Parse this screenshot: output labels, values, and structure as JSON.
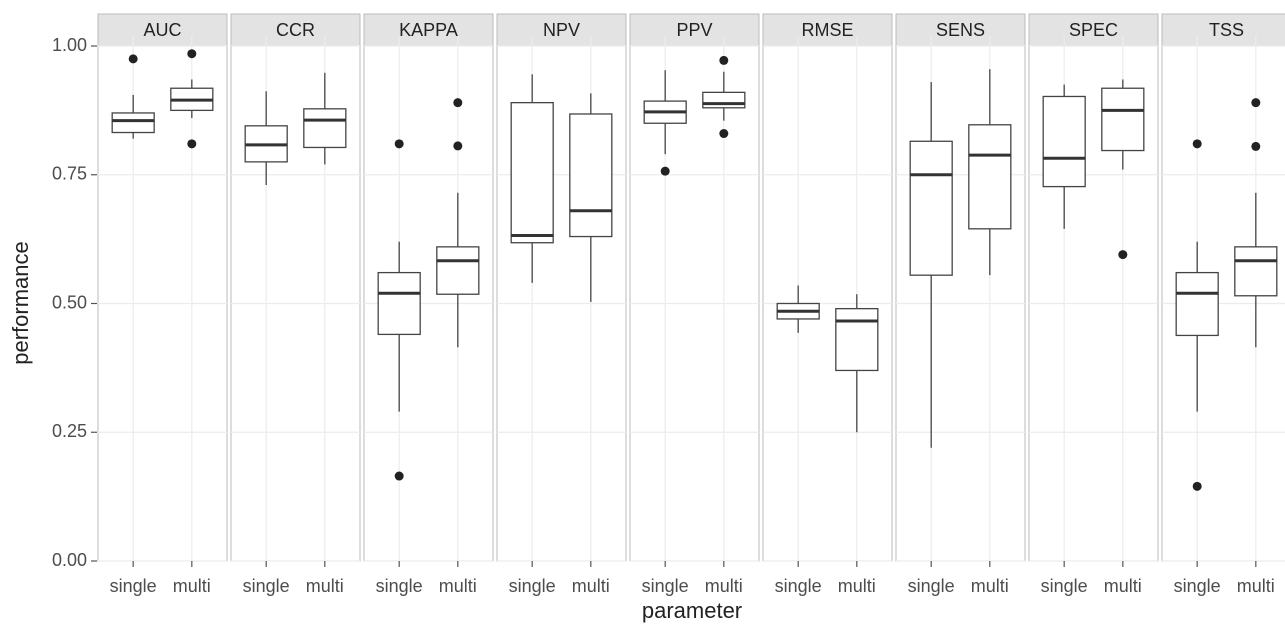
{
  "chart_data": {
    "type": "box",
    "xlabel": "parameter",
    "ylabel": "performance",
    "ylim": [
      0,
      1
    ],
    "yticks": [
      {
        "value": 0,
        "label": "0.00"
      },
      {
        "value": 0.25,
        "label": "0.25"
      },
      {
        "value": 0.5,
        "label": "0.50"
      },
      {
        "value": 0.75,
        "label": "0.75"
      },
      {
        "value": 1,
        "label": "1.00"
      }
    ],
    "grid": true,
    "categories": [
      "single",
      "multi"
    ],
    "facets": [
      {
        "name": "AUC",
        "boxes": [
          {
            "min": 0.82,
            "q1": 0.832,
            "median": 0.855,
            "q3": 0.87,
            "max": 0.905,
            "outliers": [
              0.975
            ]
          },
          {
            "min": 0.86,
            "q1": 0.875,
            "median": 0.895,
            "q3": 0.918,
            "max": 0.935,
            "outliers": [
              0.985,
              0.81
            ]
          }
        ]
      },
      {
        "name": "CCR",
        "boxes": [
          {
            "min": 0.73,
            "q1": 0.775,
            "median": 0.808,
            "q3": 0.845,
            "max": 0.912,
            "outliers": []
          },
          {
            "min": 0.77,
            "q1": 0.803,
            "median": 0.856,
            "q3": 0.878,
            "max": 0.948,
            "outliers": []
          }
        ]
      },
      {
        "name": "KAPPA",
        "boxes": [
          {
            "min": 0.29,
            "q1": 0.44,
            "median": 0.52,
            "q3": 0.56,
            "max": 0.62,
            "outliers": [
              0.81,
              0.165
            ]
          },
          {
            "min": 0.415,
            "q1": 0.518,
            "median": 0.583,
            "q3": 0.61,
            "max": 0.715,
            "outliers": [
              0.89,
              0.806
            ]
          }
        ]
      },
      {
        "name": "NPV",
        "boxes": [
          {
            "min": 0.54,
            "q1": 0.618,
            "median": 0.632,
            "q3": 0.89,
            "max": 0.945,
            "outliers": []
          },
          {
            "min": 0.503,
            "q1": 0.63,
            "median": 0.68,
            "q3": 0.868,
            "max": 0.908,
            "outliers": []
          }
        ]
      },
      {
        "name": "PPV",
        "boxes": [
          {
            "min": 0.79,
            "q1": 0.85,
            "median": 0.872,
            "q3": 0.893,
            "max": 0.953,
            "outliers": [
              0.757
            ]
          },
          {
            "min": 0.855,
            "q1": 0.88,
            "median": 0.888,
            "q3": 0.91,
            "max": 0.95,
            "outliers": [
              0.972,
              0.83
            ]
          }
        ]
      },
      {
        "name": "RMSE",
        "boxes": [
          {
            "min": 0.443,
            "q1": 0.47,
            "median": 0.485,
            "q3": 0.5,
            "max": 0.535,
            "outliers": []
          },
          {
            "min": 0.25,
            "q1": 0.37,
            "median": 0.466,
            "q3": 0.49,
            "max": 0.518,
            "outliers": []
          }
        ]
      },
      {
        "name": "SENS",
        "boxes": [
          {
            "min": 0.22,
            "q1": 0.555,
            "median": 0.75,
            "q3": 0.815,
            "max": 0.93,
            "outliers": []
          },
          {
            "min": 0.555,
            "q1": 0.645,
            "median": 0.788,
            "q3": 0.847,
            "max": 0.955,
            "outliers": []
          }
        ]
      },
      {
        "name": "SPEC",
        "boxes": [
          {
            "min": 0.645,
            "q1": 0.727,
            "median": 0.782,
            "q3": 0.902,
            "max": 0.925,
            "outliers": []
          },
          {
            "min": 0.76,
            "q1": 0.797,
            "median": 0.875,
            "q3": 0.918,
            "max": 0.935,
            "outliers": [
              0.595
            ]
          }
        ]
      },
      {
        "name": "TSS",
        "boxes": [
          {
            "min": 0.29,
            "q1": 0.438,
            "median": 0.52,
            "q3": 0.56,
            "max": 0.62,
            "outliers": [
              0.81,
              0.145
            ]
          },
          {
            "min": 0.415,
            "q1": 0.515,
            "median": 0.583,
            "q3": 0.61,
            "max": 0.715,
            "outliers": [
              0.89,
              0.805
            ]
          }
        ]
      }
    ]
  }
}
